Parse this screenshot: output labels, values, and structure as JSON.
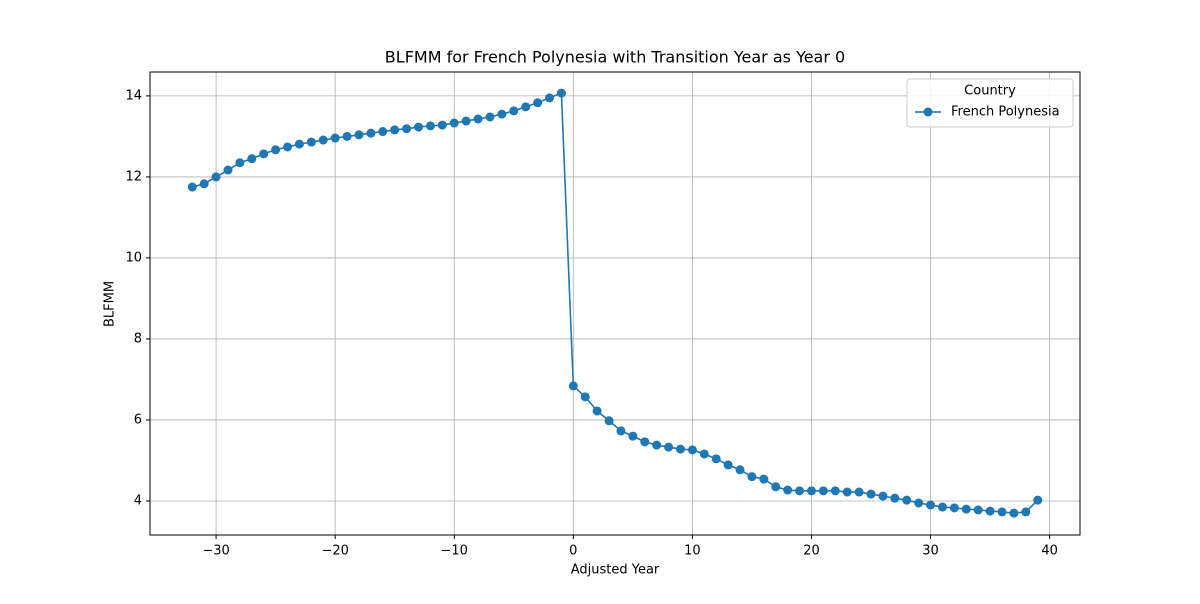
{
  "chart_data": {
    "type": "line",
    "title": "BLFMM for French Polynesia with Transition Year as Year 0",
    "x_label": "Adjusted Year",
    "y_label": "BLFMM",
    "x": [
      -32,
      -31,
      -30,
      -29,
      -28,
      -27,
      -26,
      -25,
      -24,
      -23,
      -22,
      -21,
      -20,
      -19,
      -18,
      -17,
      -16,
      -15,
      -14,
      -13,
      -12,
      -11,
      -10,
      -9,
      -8,
      -7,
      -6,
      -5,
      -4,
      -3,
      -2,
      -1,
      0,
      1,
      2,
      3,
      4,
      5,
      6,
      7,
      8,
      9,
      10,
      11,
      12,
      13,
      14,
      15,
      16,
      17,
      18,
      19,
      20,
      21,
      22,
      23,
      24,
      25,
      26,
      27,
      28,
      29,
      30,
      31,
      32,
      33,
      34,
      35,
      36,
      37,
      38,
      39
    ],
    "series": [
      {
        "name": "French Polynesia",
        "color": "#1f77b4",
        "values": [
          11.75,
          11.83,
          12.0,
          12.17,
          12.35,
          12.45,
          12.57,
          12.67,
          12.74,
          12.81,
          12.86,
          12.91,
          12.96,
          13.0,
          13.04,
          13.08,
          13.12,
          13.16,
          13.19,
          13.23,
          13.26,
          13.28,
          13.33,
          13.38,
          13.43,
          13.48,
          13.55,
          13.63,
          13.73,
          13.83,
          13.95,
          14.07,
          6.84,
          6.57,
          6.22,
          5.98,
          5.73,
          5.6,
          5.46,
          5.38,
          5.33,
          5.28,
          5.26,
          5.16,
          5.04,
          4.89,
          4.77,
          4.6,
          4.54,
          4.35,
          4.27,
          4.25,
          4.25,
          4.25,
          4.25,
          4.22,
          4.22,
          4.17,
          4.12,
          4.07,
          4.02,
          3.95,
          3.9,
          3.85,
          3.83,
          3.8,
          3.78,
          3.75,
          3.73,
          3.7,
          3.73,
          4.02
        ]
      }
    ],
    "legend_title": "Country",
    "legend_loc": "upper right",
    "xlim": [
      -35.55,
      42.55
    ],
    "xticks": [
      {
        "value": -30,
        "label": "−30"
      },
      {
        "value": -20,
        "label": "−20"
      },
      {
        "value": -10,
        "label": "−10"
      },
      0,
      10,
      20,
      30,
      40
    ],
    "ylim": [
      3.16,
      14.59
    ],
    "yticks": [
      4,
      6,
      8,
      10,
      12,
      14
    ],
    "grid": true
  }
}
